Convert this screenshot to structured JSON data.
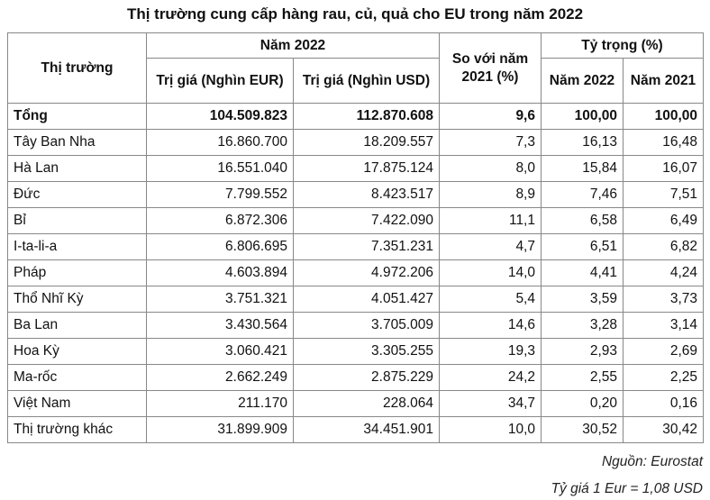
{
  "title": "Thị trường cung cấp hàng rau, củ, quả cho EU trong năm 2022",
  "headers": {
    "market": "Thị trường",
    "year_group": "Năm 2022",
    "value_eur": "Trị giá (Nghìn EUR)",
    "value_usd": "Trị giá (Nghìn USD)",
    "compare": "So với năm 2021 (%)",
    "share_group": "Tỷ trọng (%)",
    "share_2022": "Năm 2022",
    "share_2021": "Năm 2021"
  },
  "rows": [
    {
      "market": "Tổng",
      "eur": "104.509.823",
      "usd": "112.870.608",
      "compare": "9,6",
      "share2022": "100,00",
      "share2021": "100,00",
      "total": true
    },
    {
      "market": "Tây Ban Nha",
      "eur": "16.860.700",
      "usd": "18.209.557",
      "compare": "7,3",
      "share2022": "16,13",
      "share2021": "16,48"
    },
    {
      "market": "Hà Lan",
      "eur": "16.551.040",
      "usd": "17.875.124",
      "compare": "8,0",
      "share2022": "15,84",
      "share2021": "16,07"
    },
    {
      "market": "Đức",
      "eur": "7.799.552",
      "usd": "8.423.517",
      "compare": "8,9",
      "share2022": "7,46",
      "share2021": "7,51"
    },
    {
      "market": "Bỉ",
      "eur": "6.872.306",
      "usd": "7.422.090",
      "compare": "11,1",
      "share2022": "6,58",
      "share2021": "6,49"
    },
    {
      "market": "I-ta-li-a",
      "eur": "6.806.695",
      "usd": "7.351.231",
      "compare": "4,7",
      "share2022": "6,51",
      "share2021": "6,82"
    },
    {
      "market": "Pháp",
      "eur": "4.603.894",
      "usd": "4.972.206",
      "compare": "14,0",
      "share2022": "4,41",
      "share2021": "4,24"
    },
    {
      "market": "Thổ Nhĩ Kỳ",
      "eur": "3.751.321",
      "usd": "4.051.427",
      "compare": "5,4",
      "share2022": "3,59",
      "share2021": "3,73"
    },
    {
      "market": "Ba Lan",
      "eur": "3.430.564",
      "usd": "3.705.009",
      "compare": "14,6",
      "share2022": "3,28",
      "share2021": "3,14"
    },
    {
      "market": "Hoa Kỳ",
      "eur": "3.060.421",
      "usd": "3.305.255",
      "compare": "19,3",
      "share2022": "2,93",
      "share2021": "2,69"
    },
    {
      "market": "Ma-rốc",
      "eur": "2.662.249",
      "usd": "2.875.229",
      "compare": "24,2",
      "share2022": "2,55",
      "share2021": "2,25"
    },
    {
      "market": "Việt Nam",
      "eur": "211.170",
      "usd": "228.064",
      "compare": "34,7",
      "share2022": "0,20",
      "share2021": "0,16"
    },
    {
      "market": "Thị trường khác",
      "eur": "31.899.909",
      "usd": "34.451.901",
      "compare": "10,0",
      "share2022": "30,52",
      "share2021": "30,42"
    }
  ],
  "source": "Nguồn: Eurostat",
  "exchange_rate": "Tỷ giá 1 Eur = 1,08 USD"
}
